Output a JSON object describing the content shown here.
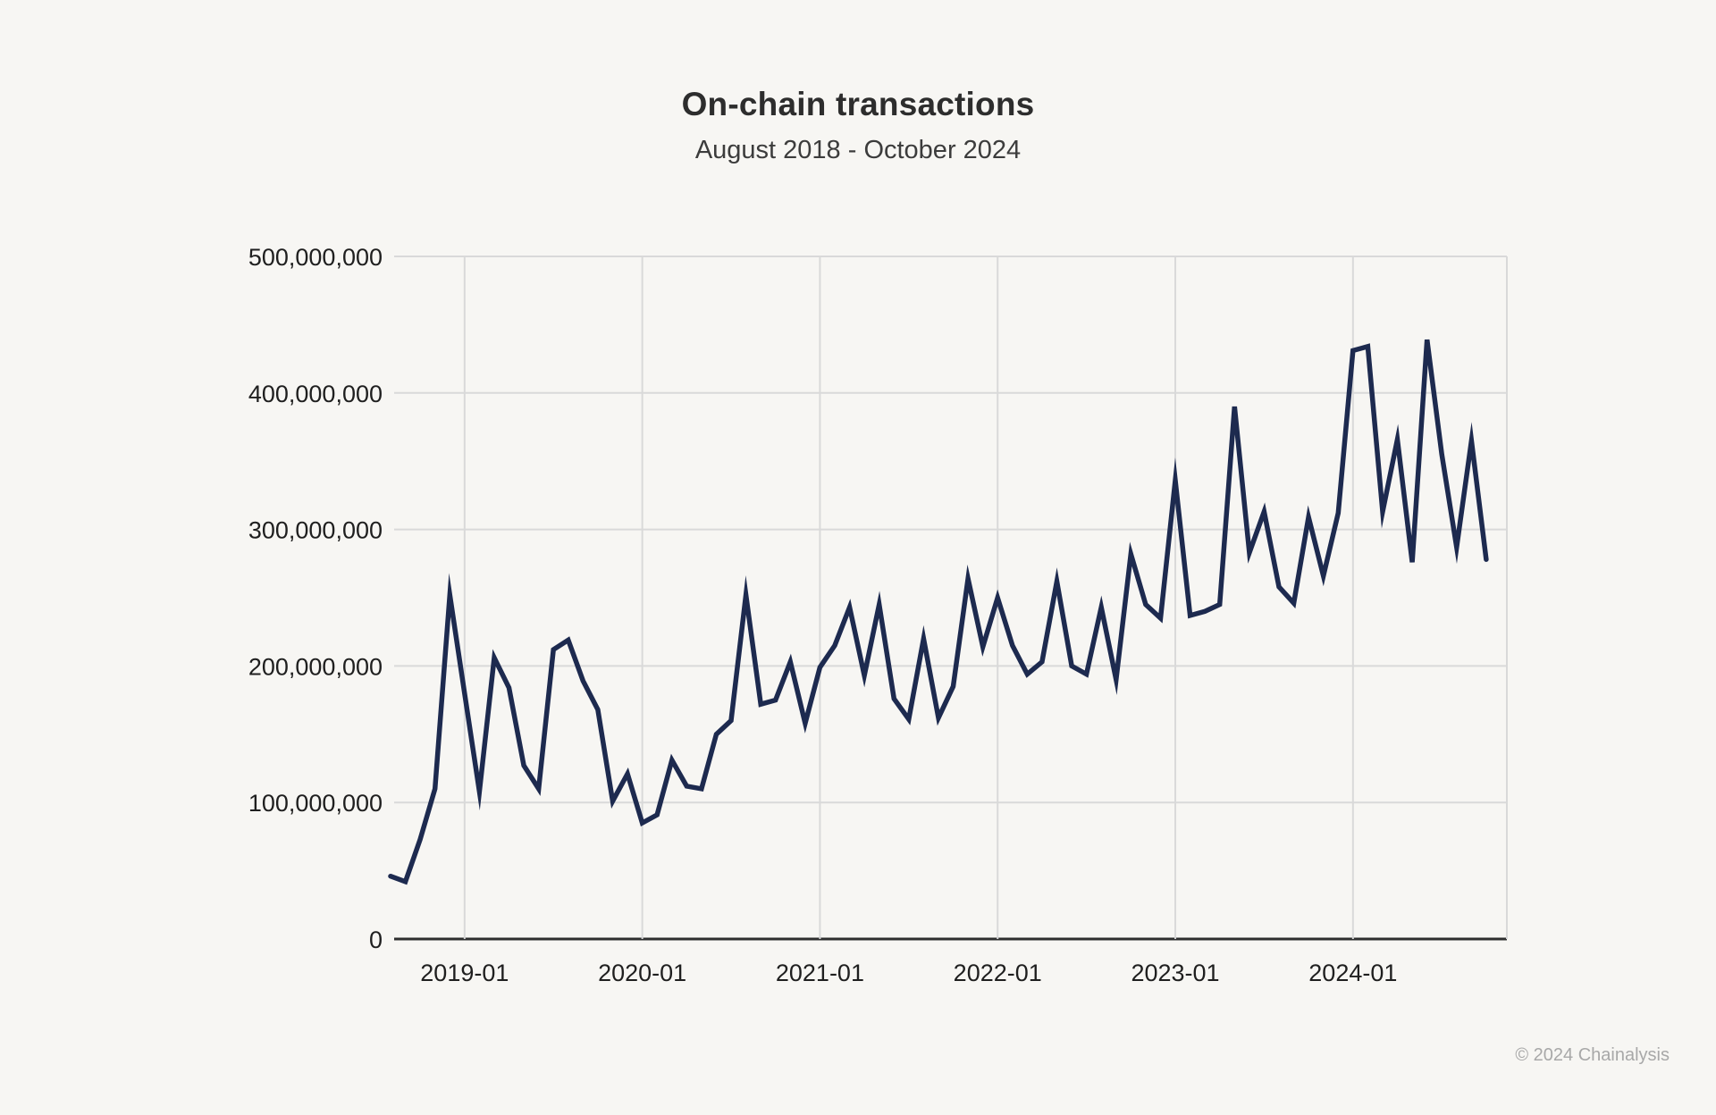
{
  "header": {
    "title": "On-chain transactions",
    "subtitle": "August 2018 - October 2024"
  },
  "footer": {
    "copyright": "© 2024 Chainalysis"
  },
  "colors": {
    "background": "#f7f6f3",
    "line": "#1d2a4f",
    "grid": "#d9d9d9",
    "axis": "#2e2e2e",
    "tick_text": "#1f1f1f",
    "title_text": "#2d2d2d",
    "footer_text": "#a8a8a8"
  },
  "chart_data": {
    "type": "line",
    "title": "On-chain transactions",
    "subtitle": "August 2018 - October 2024",
    "xlabel": "",
    "ylabel": "",
    "ylim": [
      0,
      500000000
    ],
    "grid": true,
    "legend_position": "none",
    "yticks": [
      0,
      100000000,
      200000000,
      300000000,
      400000000,
      500000000
    ],
    "xticks": [
      "2019-01",
      "2020-01",
      "2021-01",
      "2022-01",
      "2023-01",
      "2024-01"
    ],
    "x": [
      "2018-08",
      "2018-09",
      "2018-10",
      "2018-11",
      "2018-12",
      "2019-01",
      "2019-02",
      "2019-03",
      "2019-04",
      "2019-05",
      "2019-06",
      "2019-07",
      "2019-08",
      "2019-09",
      "2019-10",
      "2019-11",
      "2019-12",
      "2020-01",
      "2020-02",
      "2020-03",
      "2020-04",
      "2020-05",
      "2020-06",
      "2020-07",
      "2020-08",
      "2020-09",
      "2020-10",
      "2020-11",
      "2020-12",
      "2021-01",
      "2021-02",
      "2021-03",
      "2021-04",
      "2021-05",
      "2021-06",
      "2021-07",
      "2021-08",
      "2021-09",
      "2021-10",
      "2021-11",
      "2021-12",
      "2022-01",
      "2022-02",
      "2022-03",
      "2022-04",
      "2022-05",
      "2022-06",
      "2022-07",
      "2022-08",
      "2022-09",
      "2022-10",
      "2022-11",
      "2022-12",
      "2023-01",
      "2023-02",
      "2023-03",
      "2023-04",
      "2023-05",
      "2023-06",
      "2023-07",
      "2023-08",
      "2023-09",
      "2023-10",
      "2023-11",
      "2023-12",
      "2024-01",
      "2024-02",
      "2024-03",
      "2024-04",
      "2024-05",
      "2024-06",
      "2024-07",
      "2024-08",
      "2024-09",
      "2024-10"
    ],
    "series": [
      {
        "name": "On-chain transactions",
        "values": [
          46000000,
          42000000,
          73000000,
          110000000,
          252000000,
          180000000,
          108000000,
          206000000,
          184000000,
          127000000,
          110000000,
          212000000,
          219000000,
          189000000,
          168000000,
          101000000,
          121000000,
          85000000,
          91000000,
          131000000,
          112000000,
          110000000,
          150000000,
          160000000,
          252000000,
          172000000,
          175000000,
          203000000,
          158000000,
          199000000,
          215000000,
          243000000,
          193000000,
          245000000,
          176000000,
          161000000,
          220000000,
          162000000,
          185000000,
          264000000,
          214000000,
          250000000,
          215000000,
          194000000,
          203000000,
          262000000,
          200000000,
          194000000,
          243000000,
          190000000,
          282000000,
          245000000,
          235000000,
          336000000,
          237000000,
          240000000,
          245000000,
          390000000,
          283000000,
          313000000,
          258000000,
          246000000,
          309000000,
          266000000,
          312000000,
          431000000,
          434000000,
          313000000,
          366000000,
          276000000,
          439000000,
          355000000,
          287000000,
          365000000,
          278000000
        ]
      }
    ]
  }
}
